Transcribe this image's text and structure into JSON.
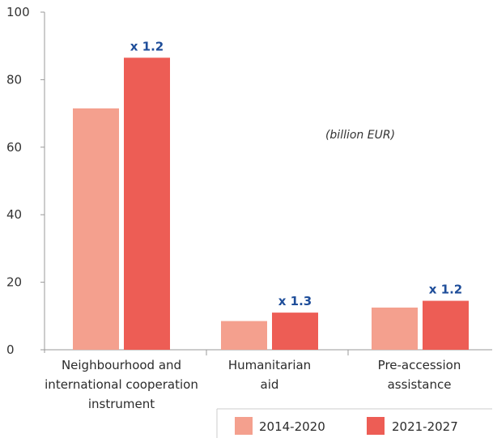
{
  "chart_data": {
    "type": "bar",
    "unit_label": "(billion EUR)",
    "categories": [
      [
        "Neighbourhood and",
        "international cooperation",
        "instrument"
      ],
      [
        "Humanitarian",
        "aid"
      ],
      [
        "Pre-accession",
        "assistance"
      ]
    ],
    "series": [
      {
        "name": "2014-2020",
        "values": [
          71.5,
          8.5,
          12.5
        ],
        "color": "#f4a08e"
      },
      {
        "name": "2021-2027",
        "values": [
          86.5,
          11.0,
          14.5
        ],
        "color": "#ed5d55"
      }
    ],
    "annotations": [
      "x 1.2",
      "x 1.3",
      "x 1.2"
    ],
    "annotation_color": "#1f4e9a",
    "ylim": [
      0,
      100
    ],
    "yticks": [
      0,
      20,
      40,
      60,
      80,
      100
    ],
    "legend_position": "bottom-right",
    "grid": false
  }
}
